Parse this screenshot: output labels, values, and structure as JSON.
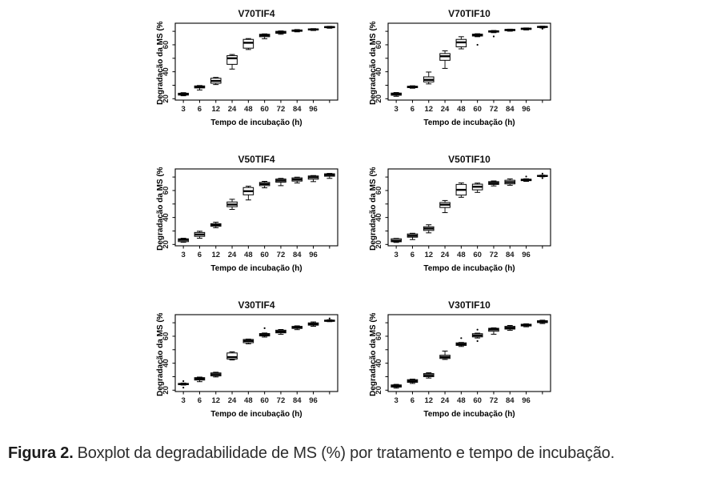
{
  "caption": {
    "label": "Figura 2.",
    "text": "Boxplot da degradabilidade de MS (%) por tratamento e tempo de incubação."
  },
  "chart_data": [
    {
      "type": "boxplot",
      "title": "V70TIF4",
      "xlabel": "Tempo de incubação (h)",
      "ylabel": "Degradação da MS (%)",
      "categories": [
        "3",
        "6",
        "12",
        "24",
        "48",
        "60",
        "72",
        "84",
        "96",
        ""
      ],
      "ylim": [
        19,
        76
      ],
      "yticks": [
        20,
        30,
        40,
        50,
        60,
        70
      ],
      "ytick_labels": [
        20,
        40,
        60
      ],
      "grid": false,
      "boxes": [
        {
          "lo": 22.2,
          "q1": 22.7,
          "med": 23.3,
          "q3": 24.1,
          "hi": 24.5
        },
        {
          "lo": 26.5,
          "q1": 28.0,
          "med": 28.8,
          "q3": 29.5,
          "hi": 29.8
        },
        {
          "lo": 30.5,
          "q1": 31.5,
          "med": 33.2,
          "q3": 35.2,
          "hi": 35.8
        },
        {
          "lo": 42.0,
          "q1": 45.5,
          "med": 50.0,
          "q3": 52.0,
          "hi": 52.8
        },
        {
          "lo": 56.5,
          "q1": 57.5,
          "med": 61.5,
          "q3": 64.0,
          "hi": 64.6
        },
        {
          "lo": 64.5,
          "q1": 66.0,
          "med": 67.0,
          "q3": 67.8,
          "hi": 68.1
        },
        {
          "lo": 67.8,
          "q1": 68.5,
          "med": 69.2,
          "q3": 70.0,
          "hi": 70.3
        },
        {
          "lo": 69.6,
          "q1": 70.0,
          "med": 70.5,
          "q3": 71.0,
          "hi": 71.3
        },
        {
          "lo": 70.6,
          "q1": 71.0,
          "med": 71.4,
          "q3": 71.8,
          "hi": 72.0
        },
        {
          "lo": 72.3,
          "q1": 72.7,
          "med": 73.1,
          "q3": 73.5,
          "hi": 73.7
        }
      ]
    },
    {
      "type": "boxplot",
      "title": "V70TIF10",
      "xlabel": "Tempo de incubação (h)",
      "ylabel": "Degradação da MS (%)",
      "categories": [
        "3",
        "6",
        "12",
        "24",
        "48",
        "60",
        "72",
        "84",
        "96",
        ""
      ],
      "ylim": [
        19,
        76
      ],
      "yticks": [
        20,
        30,
        40,
        50,
        60,
        70
      ],
      "ytick_labels": [
        20,
        40,
        60
      ],
      "grid": false,
      "boxes": [
        {
          "lo": 21.8,
          "q1": 22.6,
          "med": 23.4,
          "q3": 24.2,
          "hi": 24.6
        },
        {
          "lo": 27.8,
          "q1": 28.2,
          "med": 28.7,
          "q3": 29.3,
          "hi": 29.6
        },
        {
          "lo": 31.0,
          "q1": 32.5,
          "med": 34.0,
          "q3": 36.2,
          "hi": 39.8
        },
        {
          "lo": 42.5,
          "q1": 48.5,
          "med": 51.5,
          "q3": 53.5,
          "hi": 55.5
        },
        {
          "lo": 57.0,
          "q1": 58.5,
          "med": 61.8,
          "q3": 64.0,
          "hi": 66.0
        },
        {
          "lo": 66.0,
          "q1": 66.5,
          "med": 67.2,
          "q3": 67.9,
          "hi": 68.2,
          "out": [
            60.0
          ]
        },
        {
          "lo": 69.0,
          "q1": 69.4,
          "med": 69.9,
          "q3": 70.4,
          "hi": 70.6,
          "out": [
            66.2
          ]
        },
        {
          "lo": 70.1,
          "q1": 70.5,
          "med": 71.0,
          "q3": 71.4,
          "hi": 71.6
        },
        {
          "lo": 71.0,
          "q1": 71.4,
          "med": 71.9,
          "q3": 72.3,
          "hi": 72.5
        },
        {
          "lo": 72.5,
          "q1": 72.9,
          "med": 73.3,
          "q3": 73.6,
          "hi": 73.8,
          "out": [
            71.9
          ]
        }
      ]
    },
    {
      "type": "boxplot",
      "title": "V50TIF4",
      "xlabel": "Tempo de incubação (h)",
      "ylabel": "Degradação da MS (%)",
      "categories": [
        "3",
        "6",
        "12",
        "24",
        "48",
        "60",
        "72",
        "84",
        "96",
        ""
      ],
      "ylim": [
        19,
        76
      ],
      "yticks": [
        20,
        30,
        40,
        50,
        60,
        70
      ],
      "ytick_labels": [
        20,
        40,
        60
      ],
      "grid": false,
      "boxes": [
        {
          "lo": 21.6,
          "q1": 22.1,
          "med": 23.4,
          "q3": 24.2,
          "hi": 24.6
        },
        {
          "lo": 24.6,
          "q1": 26.0,
          "med": 27.4,
          "q3": 28.9,
          "hi": 29.8
        },
        {
          "lo": 32.4,
          "q1": 33.5,
          "med": 34.5,
          "q3": 35.4,
          "hi": 36.5
        },
        {
          "lo": 46.0,
          "q1": 48.0,
          "med": 49.6,
          "q3": 51.5,
          "hi": 53.5
        },
        {
          "lo": 53.0,
          "q1": 56.8,
          "med": 59.5,
          "q3": 62.2,
          "hi": 63.2
        },
        {
          "lo": 62.0,
          "q1": 63.6,
          "med": 64.8,
          "q3": 66.0,
          "hi": 66.8
        },
        {
          "lo": 63.6,
          "q1": 66.2,
          "med": 67.4,
          "q3": 68.5,
          "hi": 69.0
        },
        {
          "lo": 65.6,
          "q1": 67.0,
          "med": 68.2,
          "q3": 69.4,
          "hi": 69.9
        },
        {
          "lo": 66.6,
          "q1": 68.4,
          "med": 69.8,
          "q3": 70.8,
          "hi": 71.1
        },
        {
          "lo": 69.0,
          "q1": 70.6,
          "med": 71.6,
          "q3": 72.4,
          "hi": 72.7
        }
      ]
    },
    {
      "type": "boxplot",
      "title": "V50TIF10",
      "xlabel": "Tempo de incubação (h)",
      "ylabel": "Degradação da MS (%)",
      "categories": [
        "3",
        "6",
        "12",
        "24",
        "48",
        "60",
        "72",
        "84",
        "96",
        ""
      ],
      "ylim": [
        19,
        76
      ],
      "yticks": [
        20,
        30,
        40,
        50,
        60,
        70
      ],
      "ytick_labels": [
        20,
        40,
        60
      ],
      "grid": false,
      "boxes": [
        {
          "lo": 21.5,
          "q1": 22.0,
          "med": 22.8,
          "q3": 24.2,
          "hi": 24.5
        },
        {
          "lo": 23.6,
          "q1": 25.4,
          "med": 26.5,
          "q3": 27.8,
          "hi": 28.3
        },
        {
          "lo": 28.6,
          "q1": 30.4,
          "med": 31.8,
          "q3": 33.1,
          "hi": 34.6
        },
        {
          "lo": 43.6,
          "q1": 47.4,
          "med": 49.5,
          "q3": 51.1,
          "hi": 52.6
        },
        {
          "lo": 55.0,
          "q1": 56.6,
          "med": 60.5,
          "q3": 64.5,
          "hi": 65.6
        },
        {
          "lo": 58.6,
          "q1": 60.5,
          "med": 62.8,
          "q3": 64.7,
          "hi": 65.5
        },
        {
          "lo": 63.4,
          "q1": 64.5,
          "med": 65.5,
          "q3": 66.6,
          "hi": 67.1
        },
        {
          "lo": 63.9,
          "q1": 64.9,
          "med": 66.2,
          "q3": 67.6,
          "hi": 68.6
        },
        {
          "lo": 66.8,
          "q1": 67.3,
          "med": 67.9,
          "q3": 68.4,
          "hi": 68.7,
          "out": [
            70.4
          ]
        },
        {
          "lo": 70.2,
          "q1": 70.5,
          "med": 70.8,
          "q3": 71.2,
          "hi": 71.4,
          "out": [
            72.5,
            69.2
          ]
        }
      ]
    },
    {
      "type": "boxplot",
      "title": "V30TIF4",
      "xlabel": "Tempo de incubação (h)",
      "ylabel": "Degradação da MS (%)",
      "categories": [
        "3",
        "6",
        "12",
        "24",
        "48",
        "60",
        "72",
        "84",
        "96",
        ""
      ],
      "ylim": [
        19,
        76
      ],
      "yticks": [
        20,
        30,
        40,
        50,
        60,
        70
      ],
      "ytick_labels": [
        20,
        40,
        60
      ],
      "grid": false,
      "boxes": [
        {
          "lo": 23.8,
          "q1": 24.1,
          "med": 24.5,
          "q3": 25.0,
          "hi": 25.3,
          "out": [
            26.7,
            21.9
          ]
        },
        {
          "lo": 26.3,
          "q1": 27.5,
          "med": 28.4,
          "q3": 29.3,
          "hi": 29.7
        },
        {
          "lo": 29.8,
          "q1": 30.6,
          "med": 31.7,
          "q3": 32.8,
          "hi": 33.3
        },
        {
          "lo": 42.4,
          "q1": 43.1,
          "med": 44.5,
          "q3": 47.6,
          "hi": 48.4
        },
        {
          "lo": 54.4,
          "q1": 55.2,
          "med": 56.5,
          "q3": 57.6,
          "hi": 57.9
        },
        {
          "lo": 59.4,
          "q1": 60.2,
          "med": 61.0,
          "q3": 62.0,
          "hi": 62.4,
          "out": [
            66.0
          ]
        },
        {
          "lo": 61.4,
          "q1": 62.5,
          "med": 63.4,
          "q3": 64.5,
          "hi": 65.0
        },
        {
          "lo": 64.9,
          "q1": 65.8,
          "med": 66.5,
          "q3": 67.3,
          "hi": 67.7
        },
        {
          "lo": 67.4,
          "q1": 68.2,
          "med": 69.0,
          "q3": 69.9,
          "hi": 70.6
        },
        {
          "lo": 70.8,
          "q1": 71.1,
          "med": 71.5,
          "q3": 71.9,
          "hi": 72.2,
          "out": [
            73.2
          ]
        }
      ]
    },
    {
      "type": "boxplot",
      "title": "V30TIF10",
      "xlabel": "Tempo de incubação (h)",
      "ylabel": "Degradação da MS (%)",
      "categories": [
        "3",
        "6",
        "12",
        "24",
        "48",
        "60",
        "72",
        "84",
        "96",
        ""
      ],
      "ylim": [
        19,
        76
      ],
      "yticks": [
        20,
        30,
        40,
        50,
        60,
        70
      ],
      "ytick_labels": [
        20,
        40,
        60
      ],
      "grid": false,
      "boxes": [
        {
          "lo": 21.5,
          "q1": 22.3,
          "med": 23.0,
          "q3": 23.9,
          "hi": 24.3
        },
        {
          "lo": 25.0,
          "q1": 25.8,
          "med": 26.8,
          "q3": 27.8,
          "hi": 28.2
        },
        {
          "lo": 29.0,
          "q1": 30.0,
          "med": 31.1,
          "q3": 32.3,
          "hi": 32.9
        },
        {
          "lo": 42.8,
          "q1": 43.5,
          "med": 44.6,
          "q3": 45.9,
          "hi": 49.0
        },
        {
          "lo": 52.4,
          "q1": 53.2,
          "med": 54.1,
          "q3": 55.1,
          "hi": 55.4,
          "out": [
            58.6
          ]
        },
        {
          "lo": 58.7,
          "q1": 59.5,
          "med": 60.6,
          "q3": 61.9,
          "hi": 62.3,
          "out": [
            64.9,
            56.4
          ]
        },
        {
          "lo": 61.5,
          "q1": 63.7,
          "med": 65.0,
          "q3": 65.9,
          "hi": 66.2
        },
        {
          "lo": 64.4,
          "q1": 65.3,
          "med": 66.3,
          "q3": 67.3,
          "hi": 68.0
        },
        {
          "lo": 67.0,
          "q1": 67.6,
          "med": 68.2,
          "q3": 68.9,
          "hi": 69.2
        },
        {
          "lo": 69.4,
          "q1": 70.1,
          "med": 70.8,
          "q3": 71.5,
          "hi": 71.9
        }
      ]
    }
  ]
}
